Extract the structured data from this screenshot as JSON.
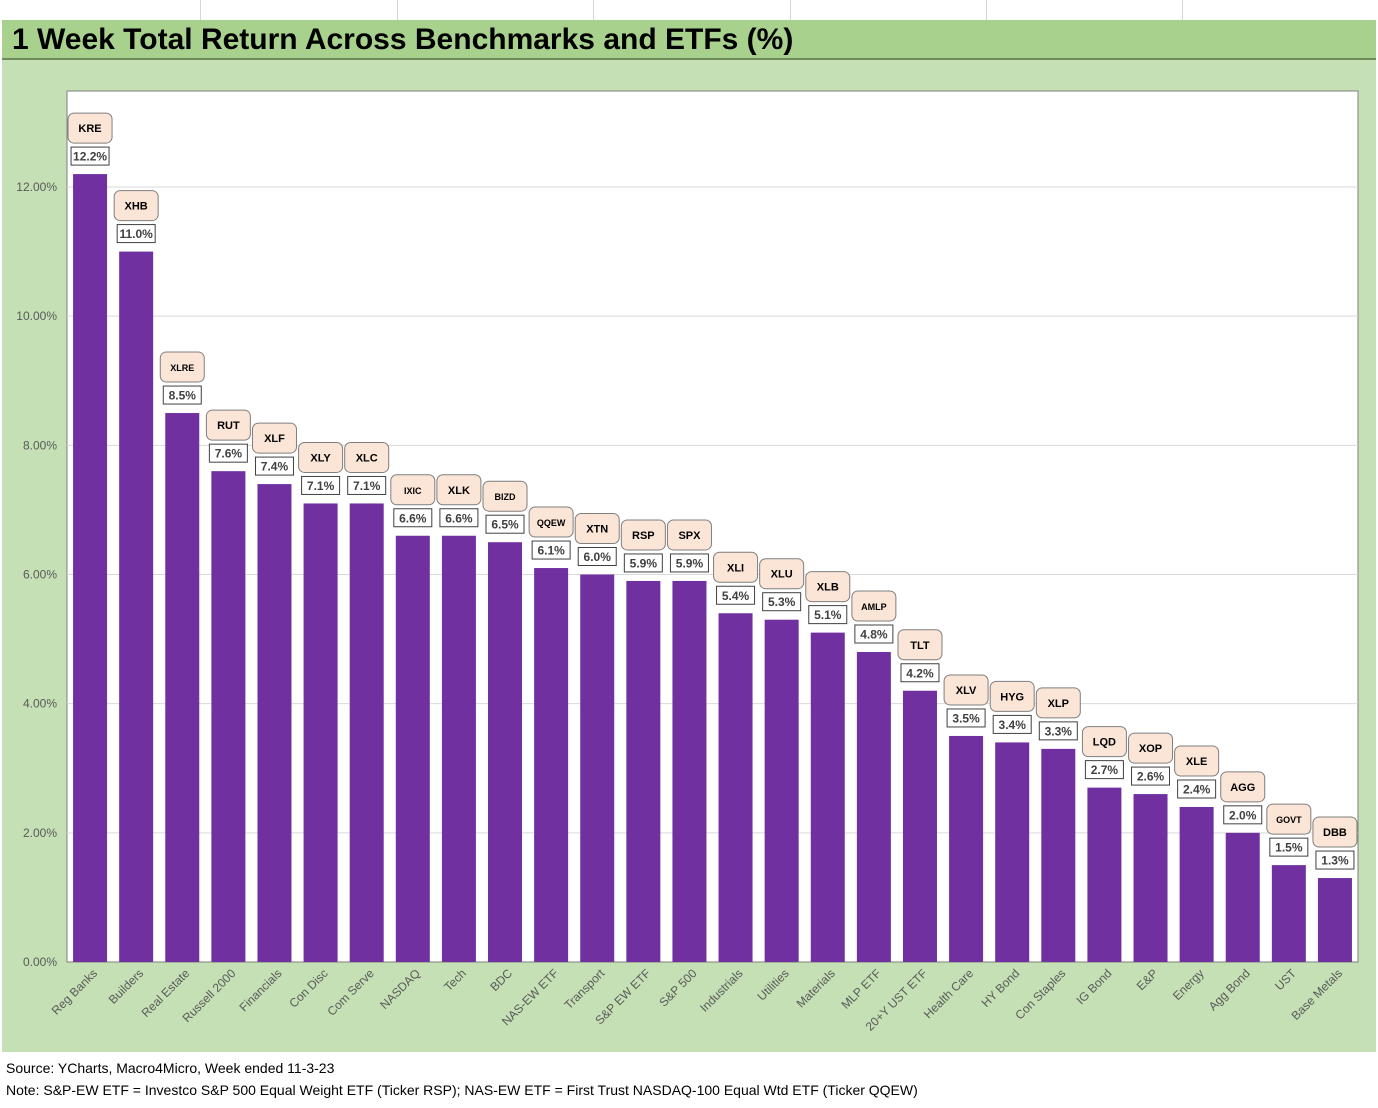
{
  "title": "1 Week Total Return Across Benchmarks and ETFs (%)",
  "colors": {
    "bar": "#7030a0",
    "title_bar": "#a9d18e",
    "chart_background": "#c5e0b4",
    "plot_background": "#ffffff",
    "ticker_box": "#fbe5d6"
  },
  "chart_data": {
    "type": "bar",
    "categories": [
      "Reg Banks",
      "Builders",
      "Real Estate",
      "Russell 2000",
      "Financials",
      "Con Disc",
      "Com Serve",
      "NASDAQ",
      "Tech",
      "BDC",
      "NAS-EW ETF",
      "Transport",
      "S&P EW ETF",
      "S&P 500",
      "Industrials",
      "Utilities",
      "Materials",
      "MLP ETF",
      "20+Y UST ETF",
      "Health Care",
      "HY Bond",
      "Con Staples",
      "IG Bond",
      "E&P",
      "Energy",
      "Agg Bond",
      "UST",
      "Base Metals"
    ],
    "tickers": [
      "KRE",
      "XHB",
      "XLRE",
      "RUT",
      "XLF",
      "XLY",
      "XLC",
      "IXIC",
      "XLK",
      "BIZD",
      "QQEW",
      "XTN",
      "RSP",
      "SPX",
      "XLI",
      "XLU",
      "XLB",
      "AMLP",
      "TLT",
      "XLV",
      "HYG",
      "XLP",
      "LQD",
      "XOP",
      "XLE",
      "AGG",
      "GOVT",
      "DBB"
    ],
    "values": [
      12.2,
      11.0,
      8.5,
      7.6,
      7.4,
      7.1,
      7.1,
      6.6,
      6.6,
      6.5,
      6.1,
      6.0,
      5.9,
      5.9,
      5.4,
      5.3,
      5.1,
      4.8,
      4.2,
      3.5,
      3.4,
      3.3,
      2.7,
      2.6,
      2.4,
      2.0,
      1.5,
      1.3
    ],
    "value_labels": [
      "12.2%",
      "11.0%",
      "8.5%",
      "7.6%",
      "7.4%",
      "7.1%",
      "7.1%",
      "6.6%",
      "6.6%",
      "6.5%",
      "6.1%",
      "6.0%",
      "5.9%",
      "5.9%",
      "5.4%",
      "5.3%",
      "5.1%",
      "4.8%",
      "4.2%",
      "3.5%",
      "3.4%",
      "3.3%",
      "2.7%",
      "2.6%",
      "2.4%",
      "2.0%",
      "1.5%",
      "1.3%"
    ],
    "ylim": [
      0,
      13.5
    ],
    "yticks": [
      0,
      2,
      4,
      6,
      8,
      10,
      12
    ],
    "ytick_labels": [
      "0.00%",
      "2.00%",
      "4.00%",
      "6.00%",
      "8.00%",
      "10.00%",
      "12.00%"
    ],
    "grid": true,
    "legend": false
  },
  "footer": {
    "source": "Source: YCharts, Macro4Micro, Week ended 11-3-23",
    "note": "Note: S&P-EW ETF = Investco S&P 500 Equal Weight ETF (Ticker RSP); NAS-EW ETF = First Trust NASDAQ-100 Equal Wtd ETF (Ticker QQEW)"
  }
}
